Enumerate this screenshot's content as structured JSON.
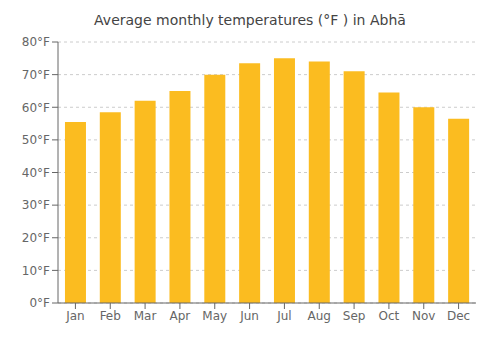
{
  "chart_data": {
    "type": "bar",
    "title": "Average monthly temperatures (°F ) in Abhā",
    "categories": [
      "Jan",
      "Feb",
      "Mar",
      "Apr",
      "May",
      "Jun",
      "Jul",
      "Aug",
      "Sep",
      "Oct",
      "Nov",
      "Dec"
    ],
    "values": [
      55.5,
      58.5,
      62.0,
      65.0,
      70.0,
      73.5,
      75.0,
      74.0,
      71.0,
      64.5,
      60.0,
      56.5
    ],
    "color": "#FBBC20",
    "ylim": [
      0,
      80
    ],
    "yticks": [
      {
        "value": 0,
        "label": "0°F"
      },
      {
        "value": 10,
        "label": "10°F"
      },
      {
        "value": 20,
        "label": "20°F"
      },
      {
        "value": 30,
        "label": "30°F"
      },
      {
        "value": 40,
        "label": "40°F"
      },
      {
        "value": 50,
        "label": "50°F"
      },
      {
        "value": 60,
        "label": "60°F"
      },
      {
        "value": 70,
        "label": "70°F"
      },
      {
        "value": 80,
        "label": "80°F"
      }
    ],
    "grid": true
  }
}
